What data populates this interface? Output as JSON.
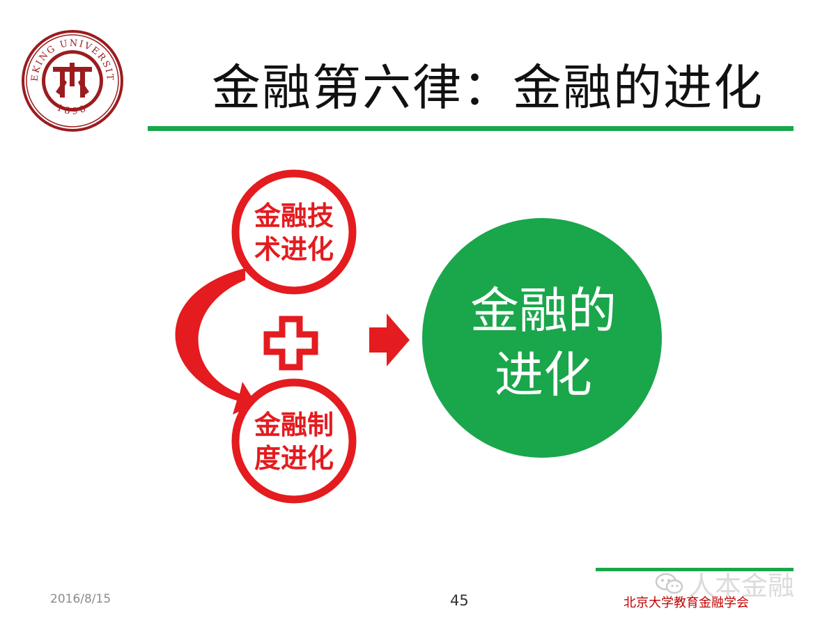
{
  "header": {
    "title": "金融第六律：金融的进化",
    "logo": {
      "arc_text": "PEKING UNIVERSITY",
      "year": "1898",
      "color": "#9b1c1f"
    }
  },
  "diagram": {
    "node_top": "金融技\n术进化",
    "node_bottom": "金融制\n度进化",
    "operator": "plus",
    "arrow": "right-arrow",
    "result": "金融的\n进化"
  },
  "footer": {
    "date": "2016/8/15",
    "page_number": "45",
    "organization": "北京大学教育金融学会"
  },
  "watermark": {
    "text": "人本金融",
    "icon": "wechat-icon"
  },
  "colors": {
    "accent_green": "#1aa64b",
    "accent_red": "#e41b1f",
    "logo_red": "#9b1c1f"
  }
}
